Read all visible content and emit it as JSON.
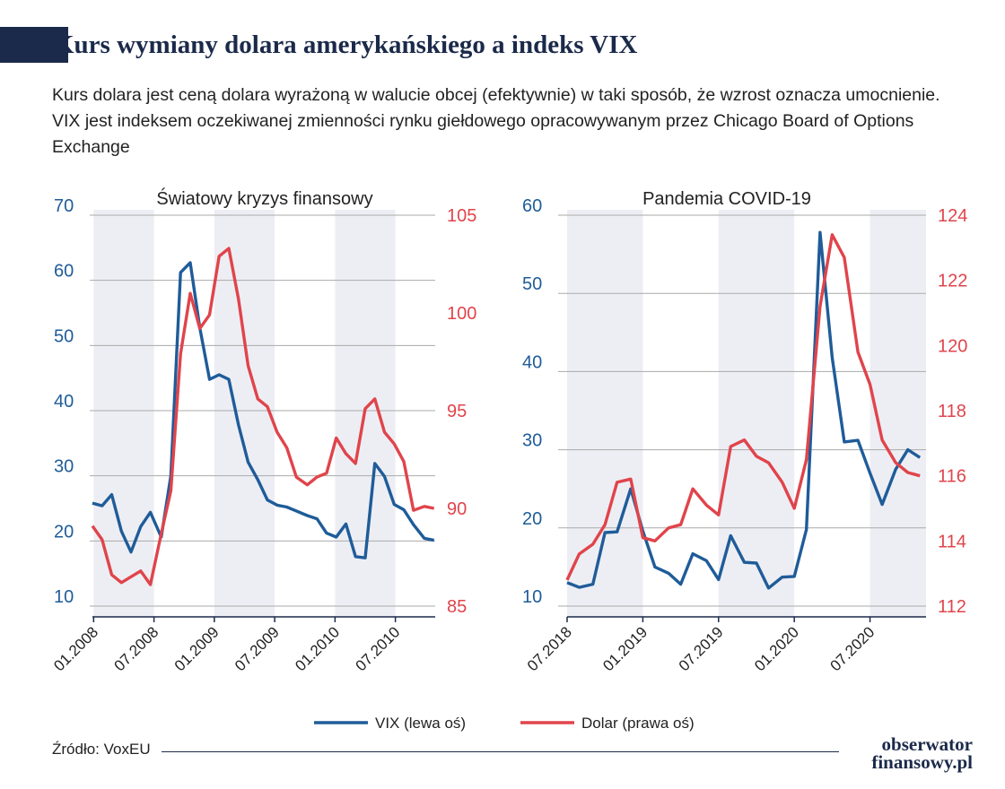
{
  "title": "Kurs wymiany dolara amerykańskiego a indeks VIX",
  "description": "Kurs dolara jest ceną dolara wyrażoną w walucie obcej (efektywnie) w taki sposób, że wzrost oznacza umocnienie. VIX jest indeksem oczekiwanej zmienności rynku giełdowego opracowywanym przez Chicago Board of Options Exchange",
  "source": "Źródło: VoxEU",
  "logo": {
    "line1": "obserwator",
    "line2": "finansowy.pl"
  },
  "colors": {
    "vix": "#1f5c99",
    "dollar": "#e0444b",
    "navy": "#1b2a4a",
    "shade": "#edeef4",
    "grid": "#aaaaaa"
  },
  "legend": {
    "vix": "VIX (lewa oś)",
    "dollar": "Dolar (prawa oś)"
  },
  "chart_data": [
    {
      "type": "line",
      "title": "Światowy kryzys finansowy",
      "x_ticks": [
        "01.2008",
        "07.2008",
        "01.2009",
        "07.2009",
        "01.2010",
        "07.2010"
      ],
      "x_range": [
        2007.99,
        2010.83
      ],
      "left_axis": {
        "ticks": [
          10,
          20,
          30,
          40,
          50,
          60,
          70
        ],
        "range": [
          10,
          70
        ]
      },
      "right_axis": {
        "ticks": [
          85,
          90,
          95,
          100,
          105
        ],
        "range": [
          85,
          105
        ]
      },
      "shaded_periods": [
        [
          2008.0,
          2008.5
        ],
        [
          2009.0,
          2009.5
        ],
        [
          2010.0,
          2010.5
        ]
      ],
      "series": [
        {
          "name": "VIX (lewa oś)",
          "axis": "left",
          "x": [
            2007.99,
            2008.07,
            2008.15,
            2008.23,
            2008.31,
            2008.39,
            2008.47,
            2008.56,
            2008.64,
            2008.72,
            2008.8,
            2008.88,
            2008.96,
            2009.04,
            2009.12,
            2009.2,
            2009.28,
            2009.36,
            2009.44,
            2009.52,
            2009.6,
            2009.68,
            2009.77,
            2009.85,
            2009.93,
            2010.01,
            2010.09,
            2010.17,
            2010.25,
            2010.33,
            2010.41,
            2010.49,
            2010.57,
            2010.65,
            2010.74,
            2010.82
          ],
          "y": [
            25.8,
            25.4,
            27.1,
            21.5,
            18.3,
            22.2,
            24.4,
            20.6,
            30.0,
            61.2,
            62.7,
            52.7,
            44.8,
            45.5,
            44.8,
            37.8,
            32.1,
            29.4,
            26.3,
            25.5,
            25.2,
            24.6,
            23.9,
            23.4,
            21.2,
            20.6,
            22.6,
            17.6,
            17.4,
            31.9,
            29.9,
            25.6,
            24.8,
            22.5,
            20.4,
            20.1
          ]
        },
        {
          "name": "Dolar (prawa oś)",
          "axis": "right",
          "x": [
            2007.99,
            2008.07,
            2008.15,
            2008.23,
            2008.31,
            2008.39,
            2008.47,
            2008.56,
            2008.64,
            2008.72,
            2008.8,
            2008.88,
            2008.96,
            2009.04,
            2009.12,
            2009.2,
            2009.28,
            2009.36,
            2009.44,
            2009.52,
            2009.6,
            2009.68,
            2009.77,
            2009.85,
            2009.93,
            2010.01,
            2010.09,
            2010.17,
            2010.25,
            2010.33,
            2010.41,
            2010.49,
            2010.57,
            2010.65,
            2010.74,
            2010.82
          ],
          "y": [
            89.1,
            88.4,
            86.6,
            86.2,
            86.5,
            86.8,
            86.1,
            88.7,
            90.9,
            97.9,
            101.0,
            99.2,
            99.9,
            102.9,
            103.3,
            100.7,
            97.3,
            95.6,
            95.2,
            93.9,
            93.1,
            91.6,
            91.2,
            91.6,
            91.8,
            93.6,
            92.8,
            92.3,
            95.1,
            95.6,
            93.9,
            93.3,
            92.4,
            89.9,
            90.1,
            90.0
          ]
        }
      ]
    },
    {
      "type": "line",
      "title": "Pandemia COVID-19",
      "x_ticks": [
        "07.2018",
        "01.2019",
        "07.2019",
        "01.2020",
        "07.2020"
      ],
      "x_range": [
        2018.5,
        2020.87
      ],
      "left_axis": {
        "ticks": [
          10,
          20,
          30,
          40,
          50,
          60
        ],
        "range": [
          10,
          60
        ]
      },
      "right_axis": {
        "ticks": [
          112,
          114,
          116,
          118,
          120,
          122,
          124
        ],
        "range": [
          112,
          124
        ]
      },
      "shaded_periods": [
        [
          2018.5,
          2019.0
        ],
        [
          2019.5,
          2020.0
        ],
        [
          2020.5,
          2020.87
        ]
      ],
      "series": [
        {
          "name": "VIX (lewa oś)",
          "axis": "left",
          "x": [
            2018.5,
            2018.58,
            2018.67,
            2018.75,
            2018.83,
            2018.92,
            2019.0,
            2019.08,
            2019.17,
            2019.25,
            2019.33,
            2019.42,
            2019.5,
            2019.58,
            2019.67,
            2019.75,
            2019.83,
            2019.92,
            2020.0,
            2020.08,
            2020.17,
            2020.25,
            2020.33,
            2020.42,
            2020.5,
            2020.58,
            2020.67,
            2020.75,
            2020.83
          ],
          "y": [
            13.0,
            12.4,
            12.8,
            19.4,
            19.5,
            25.0,
            19.6,
            15.0,
            14.2,
            12.8,
            16.7,
            15.8,
            13.4,
            19.0,
            15.6,
            15.5,
            12.3,
            13.7,
            13.8,
            19.8,
            57.8,
            41.8,
            31.0,
            31.2,
            27.0,
            23.0,
            27.5,
            30.0,
            29.0
          ]
        },
        {
          "name": "Dolar (prawa oś)",
          "axis": "right",
          "x": [
            2018.5,
            2018.58,
            2018.67,
            2018.75,
            2018.83,
            2018.92,
            2019.0,
            2019.08,
            2019.17,
            2019.25,
            2019.33,
            2019.42,
            2019.5,
            2019.58,
            2019.67,
            2019.75,
            2019.83,
            2019.92,
            2020.0,
            2020.08,
            2020.17,
            2020.25,
            2020.33,
            2020.42,
            2020.5,
            2020.58,
            2020.67,
            2020.75,
            2020.83
          ],
          "y": [
            112.8,
            113.6,
            113.9,
            114.5,
            115.8,
            115.9,
            114.1,
            114.0,
            114.4,
            114.5,
            115.6,
            115.1,
            114.8,
            116.9,
            117.1,
            116.6,
            116.4,
            115.8,
            115.0,
            116.5,
            121.2,
            123.4,
            122.7,
            119.8,
            118.8,
            117.1,
            116.4,
            116.1,
            116.0
          ]
        }
      ]
    }
  ]
}
